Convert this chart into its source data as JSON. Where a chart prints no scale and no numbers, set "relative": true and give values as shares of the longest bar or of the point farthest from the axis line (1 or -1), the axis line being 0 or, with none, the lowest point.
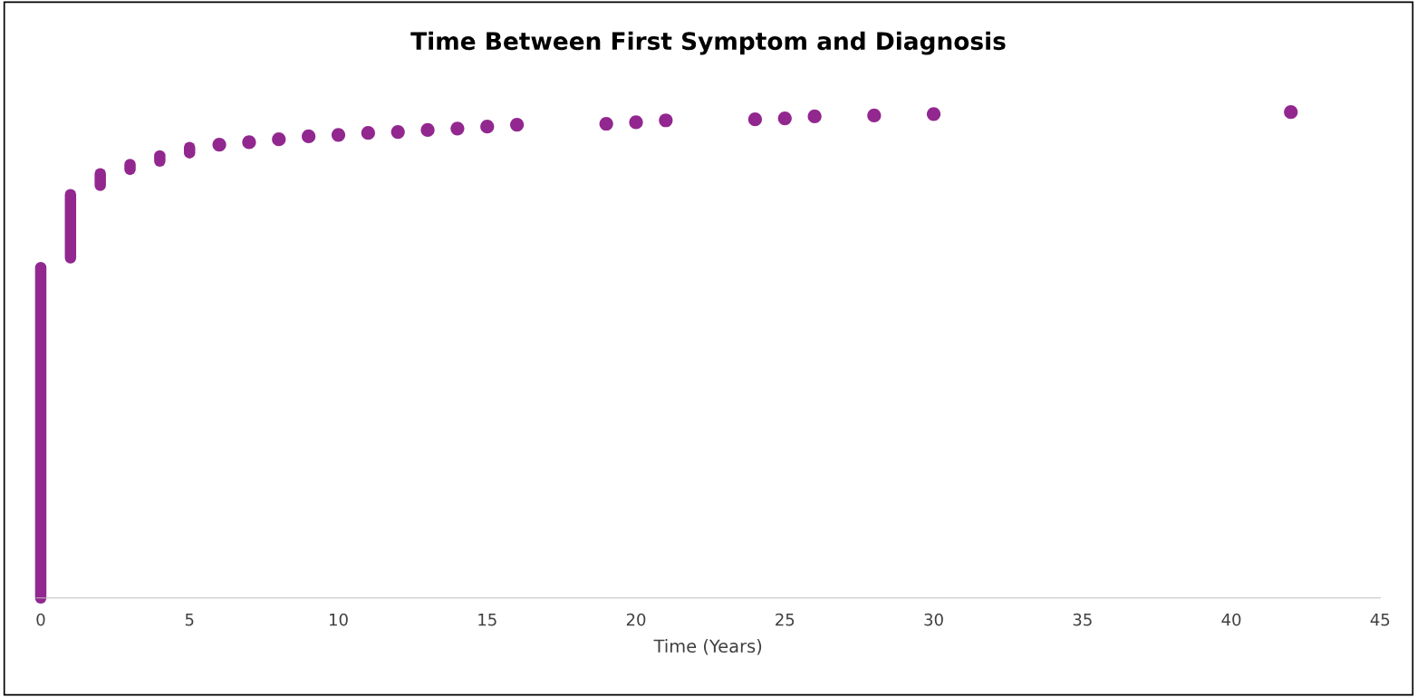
{
  "chart_data": {
    "type": "scatter",
    "title": "Time Between First Symptom and Diagnosis",
    "xlabel": "Time (Years)",
    "relative": true,
    "grid": false,
    "xlim": [
      -0.15,
      45
    ],
    "xticks": [
      0,
      5,
      10,
      15,
      20,
      25,
      30,
      35,
      40,
      45
    ],
    "series": [
      {
        "type": "line",
        "color": "#92278f",
        "x": [
          0,
          0
        ],
        "values": [
          0,
          0.68
        ]
      },
      {
        "type": "line",
        "color": "#92278f",
        "x": [
          1,
          1
        ],
        "values": [
          0.7,
          0.83
        ]
      },
      {
        "type": "line",
        "color": "#92278f",
        "x": [
          2,
          2
        ],
        "values": [
          0.849,
          0.873
        ]
      },
      {
        "type": "line",
        "color": "#92278f",
        "x": [
          3,
          3
        ],
        "values": [
          0.882,
          0.892
        ]
      },
      {
        "type": "line",
        "color": "#92278f",
        "x": [
          4,
          4
        ],
        "values": [
          0.899,
          0.91
        ]
      },
      {
        "type": "line",
        "color": "#92278f",
        "x": [
          5,
          5
        ],
        "values": [
          0.916,
          0.927
        ]
      },
      {
        "color": "#92278f",
        "x": [
          6,
          7,
          8,
          9,
          10,
          11,
          12,
          13,
          14,
          15,
          16,
          19,
          20,
          21,
          24,
          25,
          26,
          28,
          30,
          42
        ],
        "values": [
          0.933,
          0.938,
          0.944,
          0.95,
          0.953,
          0.957,
          0.959,
          0.963,
          0.966,
          0.97,
          0.974,
          0.976,
          0.979,
          0.983,
          0.985,
          0.987,
          0.991,
          0.993,
          0.996,
          1
        ]
      }
    ]
  }
}
